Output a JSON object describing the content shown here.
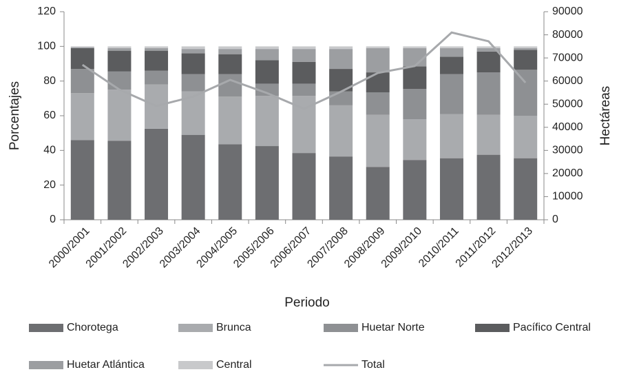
{
  "chart_data": {
    "type": "bar",
    "stacked": true,
    "xlabel": "Periodo",
    "ylabel": "Porcentajes",
    "y2label": "Hectáreas",
    "categories": [
      "2000/2001",
      "2001/2002",
      "2002/2003",
      "2003/2004",
      "2004/2005",
      "2005/2006",
      "2006/2007",
      "2007/2008",
      "2008/2009",
      "2009/2010",
      "2010/2011",
      "2011/2012",
      "2012/2013"
    ],
    "series": [
      {
        "name": "Chorotega",
        "color": "#6d6e71",
        "values": [
          46,
          45.5,
          52.5,
          49,
          43.5,
          42.5,
          38.5,
          36.5,
          30.5,
          34.5,
          35.5,
          37.5,
          35.5
        ]
      },
      {
        "name": "Brunca",
        "color": "#a9abae",
        "values": [
          27,
          29.5,
          25.5,
          25,
          27.5,
          29,
          33,
          29.5,
          30,
          23.5,
          25.5,
          23,
          24.5
        ]
      },
      {
        "name": "Huetar Norte",
        "color": "#8e9093",
        "values": [
          14,
          10.5,
          8,
          10,
          13,
          7,
          7,
          8,
          13,
          17.5,
          23,
          24.5,
          26.5
        ]
      },
      {
        "name": "Pacífico Central",
        "color": "#5b5c5e",
        "values": [
          12,
          12,
          11.5,
          12,
          11.5,
          13.5,
          12.5,
          13,
          11.5,
          13,
          10,
          12,
          11.5
        ]
      },
      {
        "name": "Huetar Atlántica",
        "color": "#9c9ea1",
        "values": [
          0.5,
          1.5,
          1.5,
          2.5,
          3,
          6.5,
          7.5,
          11.5,
          14,
          10.5,
          5,
          2,
          1
        ]
      },
      {
        "name": "Central",
        "color": "#c8c9cb",
        "values": [
          0.5,
          1,
          1,
          1.5,
          1.5,
          1.5,
          1.5,
          1.5,
          1,
          1,
          1,
          1,
          1
        ]
      },
      {
        "name": "Total",
        "color": "#a7a9ac",
        "type": "line",
        "axis": "y2",
        "values": [
          67000,
          56300,
          49200,
          53300,
          60500,
          54800,
          48000,
          55400,
          63500,
          66500,
          81000,
          77200,
          59300
        ]
      }
    ],
    "ylim": [
      0,
      120
    ],
    "yticks": [
      0,
      20,
      40,
      60,
      80,
      100,
      120
    ],
    "y2lim": [
      0,
      90000
    ],
    "y2ticks": [
      0,
      10000,
      20000,
      30000,
      40000,
      50000,
      60000,
      70000,
      80000,
      90000
    ],
    "grid": false,
    "legend": "bottom"
  }
}
